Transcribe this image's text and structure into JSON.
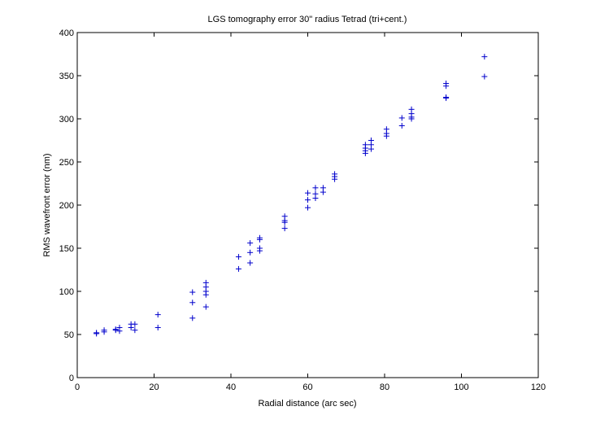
{
  "chart_data": {
    "type": "scatter",
    "title": "LGS tomography error 30\" radius Tetrad (tri+cent.)",
    "xlabel": "Radial distance (arc sec)",
    "ylabel": "RMS wavefront error (nm)",
    "xlim": [
      0,
      120
    ],
    "ylim": [
      0,
      400
    ],
    "xticks": [
      0,
      20,
      40,
      60,
      80,
      100,
      120
    ],
    "yticks": [
      0,
      50,
      100,
      150,
      200,
      250,
      300,
      350,
      400
    ],
    "grid": false,
    "marker": "+",
    "color": "#0000cc",
    "points": [
      [
        5,
        51
      ],
      [
        5,
        52
      ],
      [
        7,
        53
      ],
      [
        7,
        55
      ],
      [
        10,
        55
      ],
      [
        10,
        56
      ],
      [
        11,
        54
      ],
      [
        11,
        58
      ],
      [
        14,
        58
      ],
      [
        14,
        62
      ],
      [
        15,
        55
      ],
      [
        15,
        62
      ],
      [
        21,
        58
      ],
      [
        21,
        73
      ],
      [
        30,
        69
      ],
      [
        30,
        87
      ],
      [
        30,
        99
      ],
      [
        33.5,
        82
      ],
      [
        33.5,
        96
      ],
      [
        33.5,
        100
      ],
      [
        33.5,
        105
      ],
      [
        33.5,
        110
      ],
      [
        42,
        126
      ],
      [
        42,
        140
      ],
      [
        45,
        133
      ],
      [
        45,
        145
      ],
      [
        45,
        156
      ],
      [
        47.5,
        147
      ],
      [
        47.5,
        150
      ],
      [
        47.5,
        160
      ],
      [
        47.5,
        162
      ],
      [
        54,
        173
      ],
      [
        54,
        180
      ],
      [
        54,
        182
      ],
      [
        54,
        187
      ],
      [
        60,
        197
      ],
      [
        60,
        206
      ],
      [
        60,
        214
      ],
      [
        62,
        208
      ],
      [
        62,
        213
      ],
      [
        62,
        220
      ],
      [
        64,
        215
      ],
      [
        64,
        220
      ],
      [
        67,
        230
      ],
      [
        67,
        233
      ],
      [
        67,
        236
      ],
      [
        75,
        260
      ],
      [
        75,
        263
      ],
      [
        75,
        266
      ],
      [
        75,
        270
      ],
      [
        76.5,
        265
      ],
      [
        76.5,
        270
      ],
      [
        76.5,
        275
      ],
      [
        80.5,
        280
      ],
      [
        80.5,
        283
      ],
      [
        80.5,
        288
      ],
      [
        84.5,
        292
      ],
      [
        84.5,
        301
      ],
      [
        87,
        300
      ],
      [
        87,
        302
      ],
      [
        87,
        306
      ],
      [
        87,
        311
      ],
      [
        96,
        324
      ],
      [
        96,
        325
      ],
      [
        96,
        338
      ],
      [
        96,
        341
      ],
      [
        106,
        349
      ],
      [
        106,
        372
      ]
    ]
  }
}
